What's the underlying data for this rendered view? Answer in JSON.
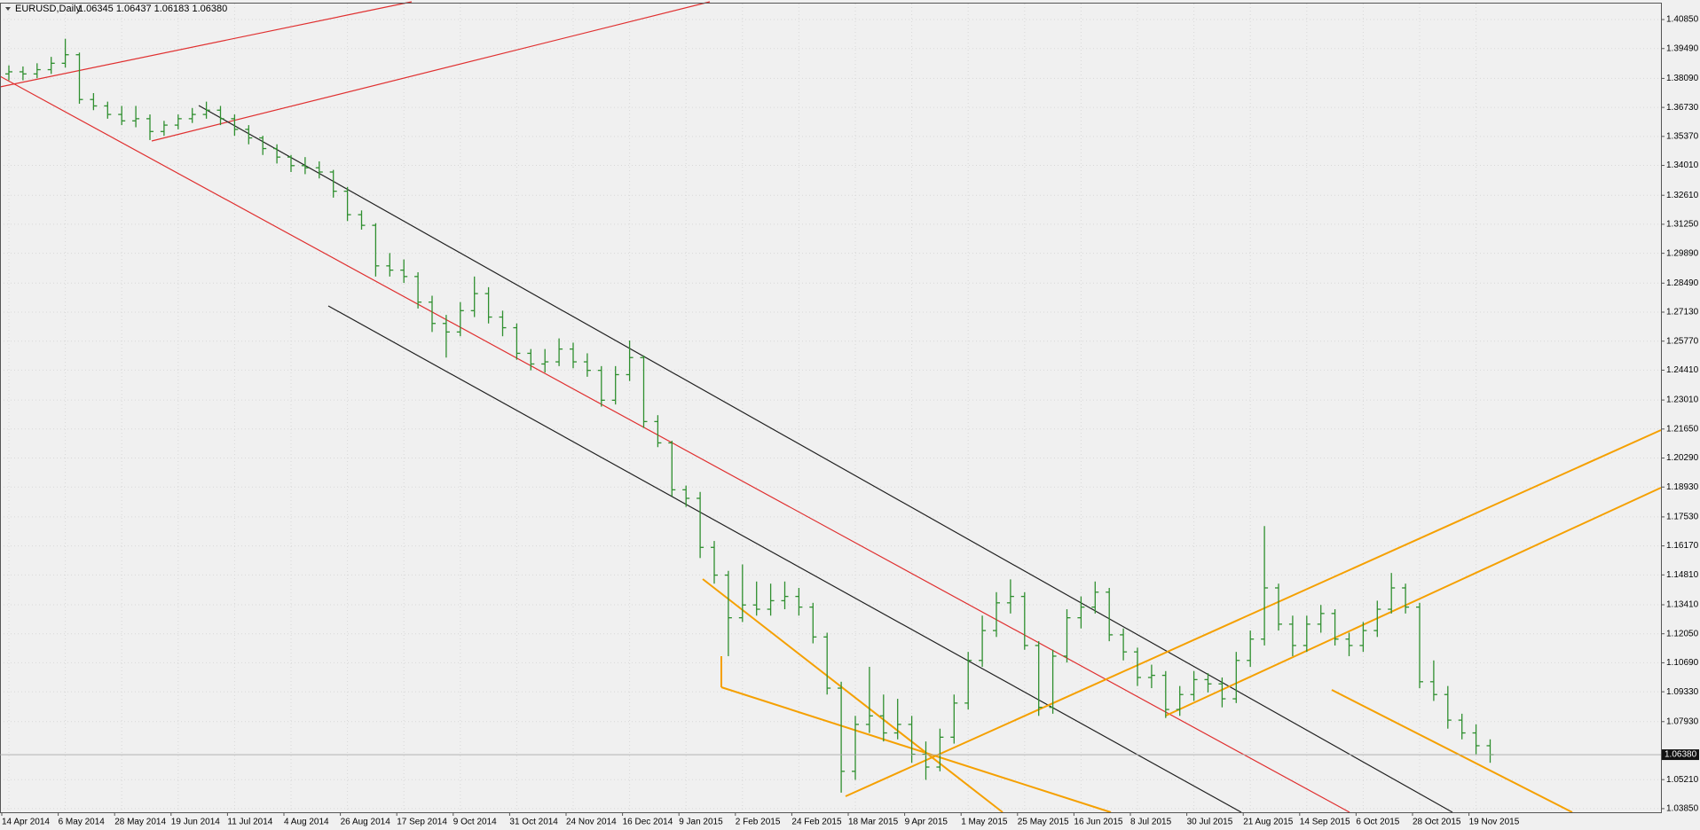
{
  "chart_data": {
    "type": "ohlc",
    "title": "EURUSD,Daily",
    "subtitle": "1.06345 1.06437 1.06183 1.06380",
    "color": "#2f8f2f",
    "grid": true,
    "ylim": [
      1.0368,
      1.416
    ],
    "yticks": [
      {
        "value": 1.4085,
        "label": "1.40850"
      },
      {
        "value": 1.3949,
        "label": "1.39490"
      },
      {
        "value": 1.3809,
        "label": "1.38090"
      },
      {
        "value": 1.3673,
        "label": "1.36730"
      },
      {
        "value": 1.3537,
        "label": "1.35370"
      },
      {
        "value": 1.3401,
        "label": "1.34010"
      },
      {
        "value": 1.3261,
        "label": "1.32610"
      },
      {
        "value": 1.3125,
        "label": "1.31250"
      },
      {
        "value": 1.2989,
        "label": "1.29890"
      },
      {
        "value": 1.2849,
        "label": "1.28490"
      },
      {
        "value": 1.2713,
        "label": "1.27130"
      },
      {
        "value": 1.2577,
        "label": "1.25770"
      },
      {
        "value": 1.2441,
        "label": "1.24410"
      },
      {
        "value": 1.2301,
        "label": "1.23010"
      },
      {
        "value": 1.2165,
        "label": "1.21650"
      },
      {
        "value": 1.2029,
        "label": "1.20290"
      },
      {
        "value": 1.1893,
        "label": "1.18930"
      },
      {
        "value": 1.1753,
        "label": "1.17530"
      },
      {
        "value": 1.1617,
        "label": "1.16170"
      },
      {
        "value": 1.1481,
        "label": "1.14810"
      },
      {
        "value": 1.1341,
        "label": "1.13410"
      },
      {
        "value": 1.1205,
        "label": "1.12050"
      },
      {
        "value": 1.1069,
        "label": "1.10690"
      },
      {
        "value": 1.0933,
        "label": "1.09330"
      },
      {
        "value": 1.0793,
        "label": "1.07930"
      },
      {
        "value": 1.0521,
        "label": "1.05210"
      },
      {
        "value": 1.0385,
        "label": "1.03850"
      }
    ],
    "last_price": {
      "value": 1.0638,
      "label": "1.06380"
    },
    "xtick_labels": [
      "14 Apr 2014",
      "6 May 2014",
      "28 May 2014",
      "19 Jun 2014",
      "11 Jul 2014",
      "4 Aug 2014",
      "26 Aug 2014",
      "17 Sep 2014",
      "9 Oct 2014",
      "31 Oct 2014",
      "24 Nov 2014",
      "16 Dec 2014",
      "9 Jan 2015",
      "2 Feb 2015",
      "24 Feb 2015",
      "18 Mar 2015",
      "9 Apr 2015",
      "1 May 2015",
      "25 May 2015",
      "16 Jun 2015",
      "8 Jul 2015",
      "30 Jul 2015",
      "21 Aug 2015",
      "14 Sep 2015",
      "6 Oct 2015",
      "28 Oct 2015",
      "19 Nov 2015"
    ],
    "bars": [
      [
        1.383,
        1.387,
        1.38,
        1.384
      ],
      [
        1.384,
        1.3865,
        1.38,
        1.383
      ],
      [
        1.383,
        1.388,
        1.381,
        1.385
      ],
      [
        1.385,
        1.391,
        1.383,
        1.388
      ],
      [
        1.388,
        1.3995,
        1.386,
        1.392
      ],
      [
        1.392,
        1.393,
        1.369,
        1.371
      ],
      [
        1.371,
        1.374,
        1.366,
        1.368
      ],
      [
        1.368,
        1.37,
        1.362,
        1.364
      ],
      [
        1.364,
        1.368,
        1.359,
        1.361
      ],
      [
        1.361,
        1.368,
        1.358,
        1.362
      ],
      [
        1.362,
        1.364,
        1.352,
        1.356
      ],
      [
        1.356,
        1.361,
        1.354,
        1.359
      ],
      [
        1.359,
        1.364,
        1.357,
        1.362
      ],
      [
        1.362,
        1.367,
        1.36,
        1.364
      ],
      [
        1.364,
        1.37,
        1.362,
        1.366
      ],
      [
        1.366,
        1.368,
        1.359,
        1.362
      ],
      [
        1.362,
        1.364,
        1.354,
        1.357
      ],
      [
        1.357,
        1.359,
        1.35,
        1.353
      ],
      [
        1.353,
        1.354,
        1.345,
        1.348
      ],
      [
        1.348,
        1.35,
        1.341,
        1.344
      ],
      [
        1.344,
        1.345,
        1.337,
        1.34
      ],
      [
        1.34,
        1.344,
        1.336,
        1.339
      ],
      [
        1.339,
        1.342,
        1.334,
        1.337
      ],
      [
        1.337,
        1.338,
        1.325,
        1.328
      ],
      [
        1.328,
        1.33,
        1.314,
        1.317
      ],
      [
        1.317,
        1.319,
        1.31,
        1.312
      ],
      [
        1.312,
        1.313,
        1.288,
        1.293
      ],
      [
        1.293,
        1.299,
        1.288,
        1.291
      ],
      [
        1.291,
        1.296,
        1.285,
        1.288
      ],
      [
        1.288,
        1.29,
        1.273,
        1.276
      ],
      [
        1.276,
        1.279,
        1.262,
        1.266
      ],
      [
        1.266,
        1.27,
        1.25,
        1.262
      ],
      [
        1.262,
        1.276,
        1.26,
        1.272
      ],
      [
        1.272,
        1.288,
        1.269,
        1.28
      ],
      [
        1.28,
        1.283,
        1.266,
        1.269
      ],
      [
        1.269,
        1.272,
        1.26,
        1.264
      ],
      [
        1.264,
        1.266,
        1.249,
        1.252
      ],
      [
        1.252,
        1.254,
        1.244,
        1.247
      ],
      [
        1.247,
        1.254,
        1.243,
        1.248
      ],
      [
        1.248,
        1.259,
        1.246,
        1.254
      ],
      [
        1.254,
        1.257,
        1.245,
        1.248
      ],
      [
        1.248,
        1.252,
        1.241,
        1.244
      ],
      [
        1.244,
        1.246,
        1.227,
        1.23
      ],
      [
        1.23,
        1.246,
        1.228,
        1.242
      ],
      [
        1.242,
        1.258,
        1.239,
        1.25
      ],
      [
        1.25,
        1.251,
        1.217,
        1.22
      ],
      [
        1.22,
        1.223,
        1.208,
        1.21
      ],
      [
        1.21,
        1.211,
        1.185,
        1.188
      ],
      [
        1.188,
        1.19,
        1.18,
        1.184
      ],
      [
        1.184,
        1.187,
        1.156,
        1.161
      ],
      [
        1.161,
        1.164,
        1.144,
        1.148
      ],
      [
        1.148,
        1.15,
        1.11,
        1.128
      ],
      [
        1.128,
        1.153,
        1.126,
        1.134
      ],
      [
        1.134,
        1.145,
        1.129,
        1.132
      ],
      [
        1.132,
        1.144,
        1.129,
        1.136
      ],
      [
        1.136,
        1.145,
        1.132,
        1.138
      ],
      [
        1.138,
        1.142,
        1.129,
        1.133
      ],
      [
        1.133,
        1.135,
        1.116,
        1.119
      ],
      [
        1.119,
        1.121,
        1.092,
        1.095
      ],
      [
        1.095,
        1.098,
        1.046,
        1.056
      ],
      [
        1.056,
        1.082,
        1.052,
        1.078
      ],
      [
        1.078,
        1.105,
        1.074,
        1.082
      ],
      [
        1.082,
        1.092,
        1.07,
        1.074
      ],
      [
        1.074,
        1.09,
        1.071,
        1.078
      ],
      [
        1.078,
        1.082,
        1.06,
        1.064
      ],
      [
        1.064,
        1.07,
        1.052,
        1.058
      ],
      [
        1.058,
        1.076,
        1.056,
        1.072
      ],
      [
        1.072,
        1.092,
        1.069,
        1.088
      ],
      [
        1.088,
        1.112,
        1.085,
        1.108
      ],
      [
        1.108,
        1.129,
        1.105,
        1.122
      ],
      [
        1.122,
        1.14,
        1.119,
        1.135
      ],
      [
        1.135,
        1.146,
        1.13,
        1.138
      ],
      [
        1.138,
        1.14,
        1.113,
        1.115
      ],
      [
        1.115,
        1.117,
        1.082,
        1.086
      ],
      [
        1.086,
        1.113,
        1.083,
        1.11
      ],
      [
        1.11,
        1.132,
        1.107,
        1.128
      ],
      [
        1.128,
        1.138,
        1.123,
        1.133
      ],
      [
        1.133,
        1.145,
        1.13,
        1.14
      ],
      [
        1.14,
        1.142,
        1.117,
        1.12
      ],
      [
        1.12,
        1.123,
        1.108,
        1.112
      ],
      [
        1.112,
        1.114,
        1.096,
        1.1
      ],
      [
        1.1,
        1.106,
        1.095,
        1.101
      ],
      [
        1.101,
        1.103,
        1.081,
        1.085
      ],
      [
        1.085,
        1.096,
        1.082,
        1.092
      ],
      [
        1.092,
        1.103,
        1.089,
        1.099
      ],
      [
        1.099,
        1.102,
        1.093,
        1.097
      ],
      [
        1.097,
        1.1,
        1.086,
        1.09
      ],
      [
        1.09,
        1.112,
        1.088,
        1.108
      ],
      [
        1.108,
        1.122,
        1.105,
        1.118
      ],
      [
        1.118,
        1.171,
        1.115,
        1.142
      ],
      [
        1.142,
        1.144,
        1.122,
        1.125
      ],
      [
        1.125,
        1.129,
        1.11,
        1.115
      ],
      [
        1.115,
        1.129,
        1.112,
        1.125
      ],
      [
        1.125,
        1.134,
        1.121,
        1.13
      ],
      [
        1.13,
        1.132,
        1.115,
        1.118
      ],
      [
        1.118,
        1.121,
        1.11,
        1.115
      ],
      [
        1.115,
        1.126,
        1.112,
        1.122
      ],
      [
        1.122,
        1.136,
        1.119,
        1.132
      ],
      [
        1.132,
        1.149,
        1.13,
        1.142
      ],
      [
        1.142,
        1.144,
        1.13,
        1.133
      ],
      [
        1.133,
        1.135,
        1.095,
        1.098
      ],
      [
        1.098,
        1.108,
        1.089,
        1.092
      ],
      [
        1.092,
        1.096,
        1.076,
        1.08
      ],
      [
        1.08,
        1.083,
        1.071,
        1.074
      ],
      [
        1.074,
        1.078,
        1.064,
        1.068
      ],
      [
        1.068,
        1.071,
        1.06,
        1.0638
      ]
    ]
  }
}
